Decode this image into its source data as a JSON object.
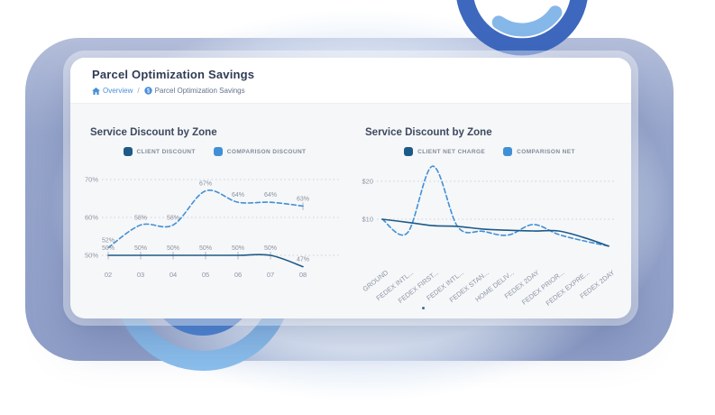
{
  "header": {
    "title": "Parcel Optimization Savings",
    "breadcrumb": {
      "home_label": "Overview",
      "separator": "/",
      "current": "Parcel Optimization Savings"
    }
  },
  "colors": {
    "accent_blue": "#4a90d9",
    "series_dark_blue": "#1d5a88",
    "series_light_blue": "#4190d6",
    "ring_dark_blue": "#3d68bd",
    "ring_light_blue": "#86b7e9",
    "inner_ring_blue": "#4b86d8",
    "outer_ring_blue": "#8cc0ee",
    "background_panel": "#8e9ec7"
  },
  "chart_data": [
    {
      "type": "line",
      "title": "Service Discount by Zone",
      "categories": [
        "02",
        "03",
        "04",
        "05",
        "06",
        "07",
        "08"
      ],
      "yticks": [
        {
          "value": 50,
          "label": "50%"
        },
        {
          "value": 60,
          "label": "60%"
        },
        {
          "value": 70,
          "label": "70%"
        }
      ],
      "ylim": [
        45,
        72
      ],
      "grid": "dotted-horizontal",
      "legend_position": "top-center",
      "series": [
        {
          "name": "CLIENT DISCOUNT",
          "style": "solid",
          "color": "#1d5a88",
          "values": [
            50,
            50,
            50,
            50,
            50,
            50,
            47
          ],
          "point_labels": [
            "50%",
            "50%",
            "50%",
            "50%",
            "50%",
            "50%",
            "47%"
          ]
        },
        {
          "name": "COMPARISON DISCOUNT",
          "style": "dashed",
          "color": "#4190d6",
          "values": [
            52,
            58,
            58,
            67,
            64,
            64,
            63
          ],
          "point_labels": [
            "52%",
            "58%",
            "58%",
            "67%",
            "64%",
            "64%",
            "63%"
          ]
        }
      ]
    },
    {
      "type": "line",
      "title": "Service Discount by Zone",
      "categories": [
        "GROUND",
        "FEDEX INTL...",
        "FEDEX FIRST...",
        "FEDEX INTL...",
        "FEDEX STAN...",
        "HOME DELIV...",
        "FEDEX 2DAY",
        "FEDEX PRIOR...",
        "FEDEX EXPRE...",
        "FEDEX 2DAY"
      ],
      "yticks": [
        {
          "value": 10,
          "label": "$10"
        },
        {
          "value": 20,
          "label": "$20"
        }
      ],
      "ylim": [
        0,
        25
      ],
      "grid": "dotted-horizontal",
      "legend_position": "top-center",
      "series": [
        {
          "name": "CLIENT NET CHARGE",
          "style": "solid",
          "color": "#1d5a88",
          "values": [
            10,
            9.2,
            8.3,
            8.1,
            7.4,
            7.1,
            6.9,
            6.9,
            5.2,
            2.9
          ]
        },
        {
          "name": "COMPARISON NET",
          "style": "dashed",
          "color": "#4190d6",
          "values": [
            10,
            6.4,
            24,
            8,
            6.8,
            5.8,
            8.6,
            6,
            4.3,
            2.9
          ]
        }
      ]
    }
  ]
}
